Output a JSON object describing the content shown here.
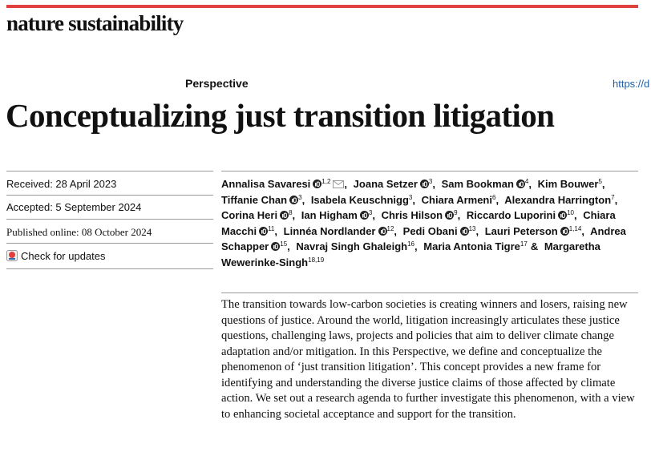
{
  "journal": "nature sustainability",
  "article_type": "Perspective",
  "doi_link": "https://d",
  "title": "Conceptualizing just transition litigation",
  "received": "Received: 28 April 2023",
  "accepted": "Accepted: 5 September 2024",
  "published": "Published online: 08 October 2024",
  "check_for_updates": "Check for updates",
  "authors": [
    {
      "name": "Annalisa Savaresi",
      "orcid": true,
      "affiliations": "1,2",
      "email": true,
      "separator": ","
    },
    {
      "name": "Joana Setzer",
      "orcid": true,
      "affiliations": "3",
      "separator": ","
    },
    {
      "name": "Sam Bookman",
      "orcid": true,
      "affiliations": "4",
      "separator": ","
    },
    {
      "name": "Kim Bouwer",
      "orcid": false,
      "affiliations": "5",
      "separator": ","
    },
    {
      "name": "Tiffanie Chan",
      "orcid": true,
      "affiliations": "3",
      "separator": ","
    },
    {
      "name": "Isabela Keuschnigg",
      "orcid": false,
      "affiliations": "3",
      "separator": ","
    },
    {
      "name": "Chiara Armeni",
      "orcid": false,
      "affiliations": "6",
      "separator": ","
    },
    {
      "name": "Alexandra Harrington",
      "orcid": false,
      "affiliations": "7",
      "separator": ","
    },
    {
      "name": "Corina Heri",
      "orcid": true,
      "affiliations": "8",
      "separator": ","
    },
    {
      "name": "Ian Higham",
      "orcid": true,
      "affiliations": "3",
      "separator": ","
    },
    {
      "name": "Chris Hilson",
      "orcid": true,
      "affiliations": "9",
      "separator": ","
    },
    {
      "name": "Riccardo Luporini",
      "orcid": true,
      "affiliations": "10",
      "separator": ","
    },
    {
      "name": "Chiara Macchi",
      "orcid": true,
      "affiliations": "11",
      "separator": ","
    },
    {
      "name": "Linnéa Nordlander",
      "orcid": true,
      "affiliations": "12",
      "separator": ","
    },
    {
      "name": "Pedi Obani",
      "orcid": true,
      "affiliations": "13",
      "separator": ","
    },
    {
      "name": "Lauri Peterson",
      "orcid": true,
      "affiliations": "1,14",
      "separator": ","
    },
    {
      "name": "Andrea Schapper",
      "orcid": true,
      "affiliations": "15",
      "separator": ","
    },
    {
      "name": "Navraj Singh Ghaleigh",
      "orcid": false,
      "affiliations": "16",
      "separator": ","
    },
    {
      "name": "Maria Antonia Tigre",
      "orcid": false,
      "affiliations": "17",
      "separator": "&"
    },
    {
      "name": "Margaretha Wewerinke-Singh",
      "orcid": false,
      "affiliations": "18,19"
    }
  ],
  "abstract": "The transition towards low-carbon societies is creating winners and losers, raising new questions of justice. Around the world, litigation increasingly articulates these justice questions, challenging laws, projects and policies that aim to deliver climate change adaptation and/or mitigation. In this Perspective, we define and conceptualize the phenomenon of ‘just transition litigation’. This concept provides a new frame for identifying and understanding the diverse justice claims of those affected by climate action. We set out a research agenda to further investigate this phenomenon, with a view to enhancing societal acceptance and support for the transition."
}
